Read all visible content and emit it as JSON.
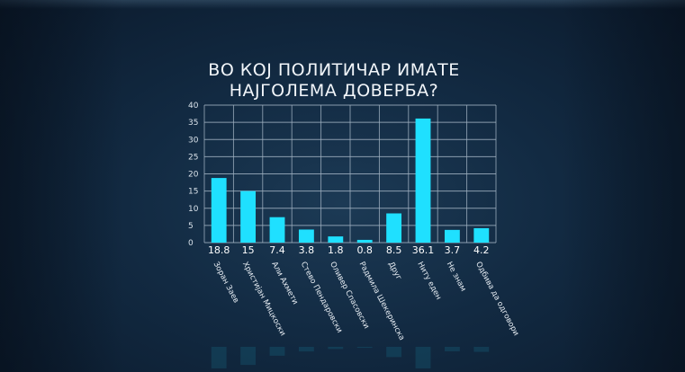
{
  "chart_data": {
    "type": "bar",
    "title": [
      "ВО КОЈ ПОЛИТИЧАР ИМАТЕ",
      "НАЈГОЛЕМА ДОВЕРБА?"
    ],
    "categories": [
      "Зоран Заев",
      "Христијан Мицкоски",
      "Али Ахмети",
      "Стево Пендаровски",
      "Оливер Спасовски",
      "Радмила Шекеринска",
      "Друг",
      "Ниту еден",
      "Не знам",
      "Одбива да одговори"
    ],
    "values": [
      18.8,
      15,
      7.4,
      3.8,
      1.8,
      0.8,
      8.5,
      36.1,
      3.7,
      4.2
    ],
    "value_labels": [
      "18.8",
      "15",
      "7.4",
      "3.8",
      "1.8",
      "0.8",
      "8.5",
      "36.1",
      "3.7",
      "4.2"
    ],
    "yticks": [
      "0",
      "5",
      "10",
      "15",
      "20",
      "25",
      "30",
      "35",
      "40"
    ],
    "ylim": [
      0,
      40
    ],
    "grid": true,
    "bar_color": "#1fe0ff",
    "grid_color": "#9fb0c0"
  }
}
